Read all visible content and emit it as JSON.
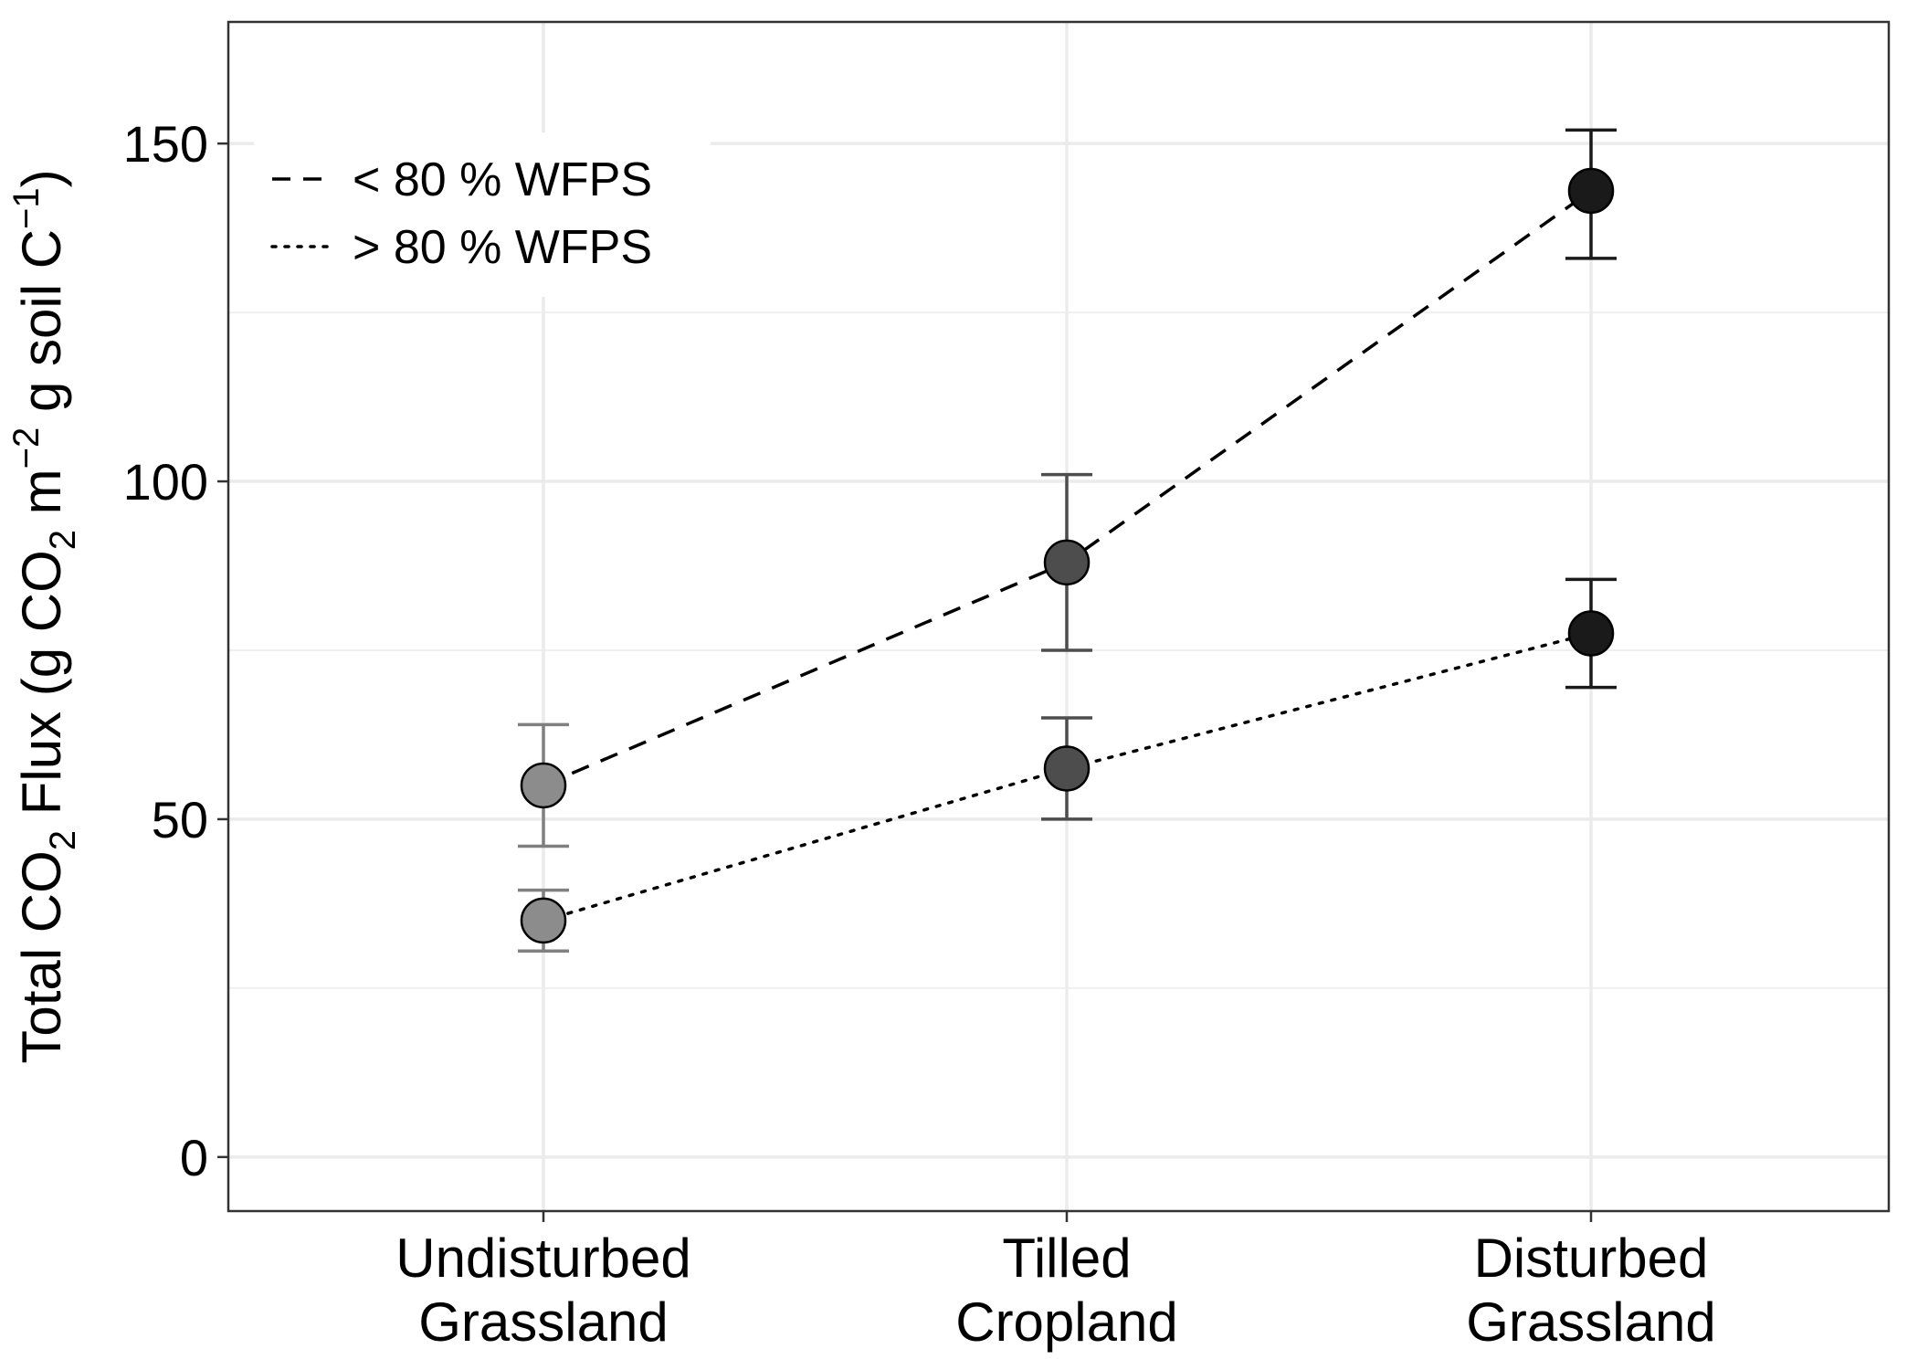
{
  "chart_data": {
    "type": "scatter",
    "title": "",
    "categories": [
      "Undisturbed\nGrassland",
      "Tilled\nCropland",
      "Disturbed\nGrassland"
    ],
    "xlabel": "",
    "ylabel_parts": {
      "pre": "Total CO",
      "sub1": "2",
      "mid1": " Flux ",
      "paren_open": "(",
      "mid2": "g CO",
      "sub2": "2",
      "mid3": " m",
      "sup1": "−2",
      "mid4": " g soil C",
      "sup2": "−1",
      "paren_close": ")"
    },
    "ylim": [
      -8,
      168
    ],
    "yticks": [
      0,
      50,
      100,
      150
    ],
    "grid": true,
    "legend_position": "top-left",
    "series": [
      {
        "name": "< 80 % WFPS",
        "line_style": "dashed",
        "values": [
          55,
          88,
          143
        ],
        "error_low": [
          46,
          75,
          133
        ],
        "error_high": [
          64,
          101,
          152
        ]
      },
      {
        "name": "> 80 % WFPS",
        "line_style": "dotted",
        "values": [
          35,
          57.5,
          77.5
        ],
        "error_low": [
          30.5,
          50,
          69.5
        ],
        "error_high": [
          39.5,
          65,
          85.5
        ]
      }
    ],
    "point_colors": [
      "#8c8c8c",
      "#4d4d4d",
      "#1a1a1a"
    ],
    "errorbar_colors": [
      "#808080",
      "#4d4d4d",
      "#1a1a1a"
    ]
  }
}
